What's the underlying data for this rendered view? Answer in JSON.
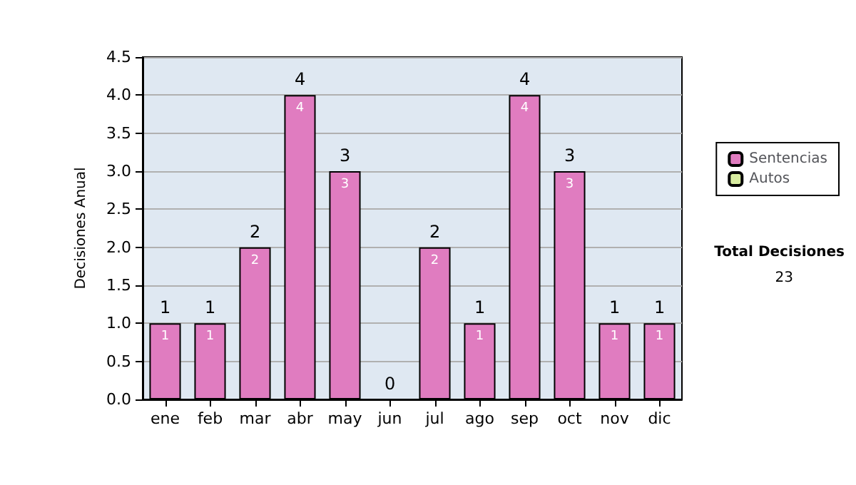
{
  "chart_data": {
    "type": "bar",
    "stacked": true,
    "ylabel": "Decisiones Anual",
    "categories": [
      "ene",
      "feb",
      "mar",
      "abr",
      "may",
      "jun",
      "jul",
      "ago",
      "sep",
      "oct",
      "nov",
      "dic"
    ],
    "series": [
      {
        "name": "Sentencias",
        "color": "#e07cc0",
        "values": [
          1,
          1,
          2,
          4,
          3,
          0,
          2,
          1,
          4,
          3,
          1,
          1
        ],
        "value_labels": [
          "1",
          "1",
          "2",
          "4",
          "3",
          null,
          "2",
          "1",
          "4",
          "3",
          "1",
          "1"
        ]
      },
      {
        "name": "Autos",
        "color": "#d8eca0",
        "values": [
          0,
          0,
          0,
          0,
          0,
          0,
          0,
          0,
          0,
          0,
          0,
          0
        ]
      }
    ],
    "totals": [
      "1",
      "1",
      "2",
      "4",
      "3",
      "0",
      "2",
      "1",
      "4",
      "3",
      "1",
      "1"
    ],
    "ylim": [
      0,
      4.5
    ],
    "yticks": [
      {
        "value": 0,
        "label": "0.0"
      },
      {
        "value": 0.5,
        "label": "0.5"
      },
      {
        "value": 1,
        "label": "1.0"
      },
      {
        "value": 1.5,
        "label": "1.5"
      },
      {
        "value": 2,
        "label": "2.0"
      },
      {
        "value": 2.5,
        "label": "2.5"
      },
      {
        "value": 3,
        "label": "3.0"
      },
      {
        "value": 3.5,
        "label": "3.5"
      },
      {
        "value": 4,
        "label": "4.0"
      },
      {
        "value": 4.5,
        "label": "4.5"
      }
    ],
    "grid": "y",
    "legend": "right",
    "annotations": [
      "Total Decisiones",
      "23"
    ]
  }
}
